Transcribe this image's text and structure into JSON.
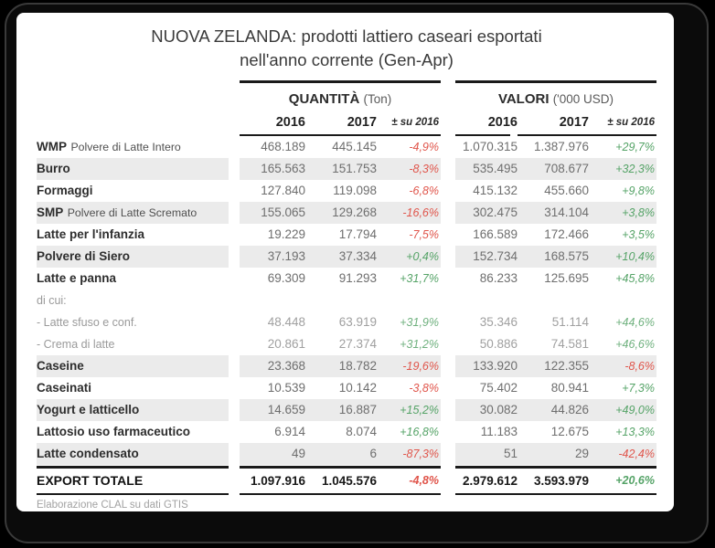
{
  "window": {
    "background": "#000000",
    "frame_border": "#3a3a3a",
    "card_background": "#ffffff"
  },
  "chart_data": {
    "type": "table",
    "title": "NUOVA ZELANDA: prodotti lattiero caseari esportati nell'anno corrente (Gen-Apr)",
    "title_lines": [
      "NUOVA ZELANDA: prodotti lattiero caseari esportati",
      "nell'anno corrente (Gen-Apr)"
    ],
    "column_groups": [
      {
        "label": "QUANTITÀ",
        "unit": "(Ton)"
      },
      {
        "label": "VALORI",
        "unit": "('000 USD)"
      }
    ],
    "columns": [
      "2016",
      "2017",
      "± su 2016",
      "2016",
      "2017",
      "± su 2016"
    ],
    "rows": [
      {
        "label": "WMP",
        "sublabel": "Polvere di Latte Intero",
        "kind": "main",
        "striped": false,
        "q2016": "468.189",
        "q2017": "445.145",
        "q_delta": "-4,9%",
        "v2016": "1.070.315",
        "v2017": "1.387.976",
        "v_delta": "+29,7%"
      },
      {
        "label": "Burro",
        "sublabel": "",
        "kind": "main",
        "striped": true,
        "q2016": "165.563",
        "q2017": "151.753",
        "q_delta": "-8,3%",
        "v2016": "535.495",
        "v2017": "708.677",
        "v_delta": "+32,3%"
      },
      {
        "label": "Formaggi",
        "sublabel": "",
        "kind": "main",
        "striped": false,
        "q2016": "127.840",
        "q2017": "119.098",
        "q_delta": "-6,8%",
        "v2016": "415.132",
        "v2017": "455.660",
        "v_delta": "+9,8%"
      },
      {
        "label": "SMP",
        "sublabel": "Polvere di Latte Scremato",
        "kind": "main",
        "striped": true,
        "q2016": "155.065",
        "q2017": "129.268",
        "q_delta": "-16,6%",
        "v2016": "302.475",
        "v2017": "314.104",
        "v_delta": "+3,8%"
      },
      {
        "label": "Latte per l'infanzia",
        "sublabel": "",
        "kind": "main",
        "striped": false,
        "q2016": "19.229",
        "q2017": "17.794",
        "q_delta": "-7,5%",
        "v2016": "166.589",
        "v2017": "172.466",
        "v_delta": "+3,5%"
      },
      {
        "label": "Polvere di Siero",
        "sublabel": "",
        "kind": "main",
        "striped": true,
        "q2016": "37.193",
        "q2017": "37.334",
        "q_delta": "+0,4%",
        "v2016": "152.734",
        "v2017": "168.575",
        "v_delta": "+10,4%"
      },
      {
        "label": "Latte e panna",
        "sublabel": "",
        "kind": "main",
        "striped": false,
        "q2016": "69.309",
        "q2017": "91.293",
        "q_delta": "+31,7%",
        "v2016": "86.233",
        "v2017": "125.695",
        "v_delta": "+45,8%"
      },
      {
        "label": "di cui:",
        "sublabel": "",
        "kind": "note",
        "striped": false,
        "q2016": "",
        "q2017": "",
        "q_delta": "",
        "v2016": "",
        "v2017": "",
        "v_delta": ""
      },
      {
        "label": "- Latte sfuso e conf.",
        "sublabel": "",
        "kind": "sub",
        "striped": false,
        "q2016": "48.448",
        "q2017": "63.919",
        "q_delta": "+31,9%",
        "v2016": "35.346",
        "v2017": "51.114",
        "v_delta": "+44,6%"
      },
      {
        "label": "- Crema di latte",
        "sublabel": "",
        "kind": "sub",
        "striped": false,
        "q2016": "20.861",
        "q2017": "27.374",
        "q_delta": "+31,2%",
        "v2016": "50.886",
        "v2017": "74.581",
        "v_delta": "+46,6%"
      },
      {
        "label": "Caseine",
        "sublabel": "",
        "kind": "main",
        "striped": true,
        "q2016": "23.368",
        "q2017": "18.782",
        "q_delta": "-19,6%",
        "v2016": "133.920",
        "v2017": "122.355",
        "v_delta": "-8,6%"
      },
      {
        "label": "Caseinati",
        "sublabel": "",
        "kind": "main",
        "striped": false,
        "q2016": "10.539",
        "q2017": "10.142",
        "q_delta": "-3,8%",
        "v2016": "75.402",
        "v2017": "80.941",
        "v_delta": "+7,3%"
      },
      {
        "label": "Yogurt e latticello",
        "sublabel": "",
        "kind": "main",
        "striped": true,
        "q2016": "14.659",
        "q2017": "16.887",
        "q_delta": "+15,2%",
        "v2016": "30.082",
        "v2017": "44.826",
        "v_delta": "+49,0%"
      },
      {
        "label": "Lattosio uso farmaceutico",
        "sublabel": "",
        "kind": "main",
        "striped": false,
        "q2016": "6.914",
        "q2017": "8.074",
        "q_delta": "+16,8%",
        "v2016": "11.183",
        "v2017": "12.675",
        "v_delta": "+13,3%"
      },
      {
        "label": "Latte condensato",
        "sublabel": "",
        "kind": "main",
        "striped": true,
        "q2016": "49",
        "q2017": "6",
        "q_delta": "-87,3%",
        "v2016": "51",
        "v2017": "29",
        "v_delta": "-42,4%"
      }
    ],
    "total": {
      "label": "EXPORT TOTALE",
      "q2016": "1.097.916",
      "q2017": "1.045.576",
      "q_delta": "-4,8%",
      "v2016": "2.979.612",
      "v2017": "3.593.979",
      "v_delta": "+20,6%"
    },
    "source": "Elaborazione CLAL su dati GTIS",
    "colors": {
      "positive": "#55a367",
      "negative": "#e0554b",
      "stripe": "#ebebeb",
      "rule": "#1a1a1a"
    },
    "legend_position": "none",
    "grid": false
  }
}
